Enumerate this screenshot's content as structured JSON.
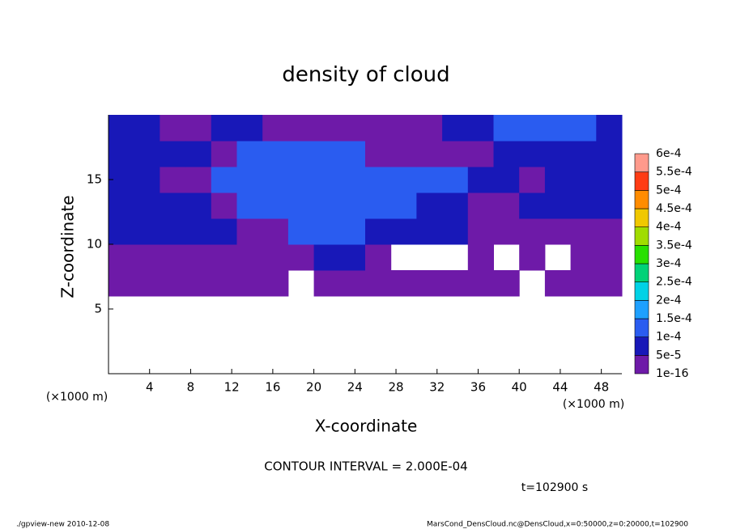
{
  "chart_data": {
    "type": "contour",
    "title": "density of cloud",
    "x_label": "X-coordinate",
    "y_label": "Z-coordinate",
    "x_unit": "(×1000 m)",
    "y_unit": "(×1000 m)",
    "contour_note": "CONTOUR INTERVAL = 2.000E-04",
    "time_label": "t=102900 s",
    "footer_left": "./gpview-new   2010-12-08",
    "footer_right": "MarsCond_DensCloud.nc@DensCloud,x=0:50000,z=0:20000,t=102900",
    "xlim": [
      0,
      50
    ],
    "ylim": [
      0,
      20
    ],
    "xticks": [
      4,
      8,
      12,
      16,
      20,
      24,
      28,
      32,
      36,
      40,
      44,
      48
    ],
    "yticks": [
      5,
      10,
      15
    ],
    "x_edges": [
      0,
      2.5,
      5,
      7.5,
      10,
      12.5,
      15,
      17.5,
      20,
      22.5,
      25,
      27.5,
      30,
      32.5,
      35,
      37.5,
      40,
      42.5,
      45,
      47.5,
      50
    ],
    "z_edges": [
      0,
      2,
      4,
      6,
      8,
      10,
      12,
      14,
      16,
      18,
      20
    ],
    "values": [
      [
        null,
        null,
        null,
        null,
        null,
        null,
        null,
        null,
        null,
        null,
        null,
        null,
        null,
        null,
        null,
        null,
        null,
        null,
        null,
        null
      ],
      [
        null,
        null,
        null,
        null,
        null,
        null,
        null,
        null,
        null,
        null,
        null,
        null,
        null,
        null,
        null,
        null,
        null,
        null,
        null,
        null
      ],
      [
        null,
        null,
        null,
        null,
        null,
        null,
        null,
        null,
        null,
        null,
        null,
        null,
        null,
        null,
        null,
        null,
        null,
        null,
        null,
        null
      ],
      [
        3e-05,
        3e-05,
        3e-05,
        3e-05,
        3e-05,
        3e-05,
        3e-05,
        null,
        3e-05,
        3e-05,
        3e-05,
        3e-05,
        3e-05,
        3e-05,
        3e-05,
        3e-05,
        null,
        3e-05,
        3e-05,
        3e-05
      ],
      [
        3e-05,
        3e-05,
        3e-05,
        3e-05,
        3e-05,
        3e-05,
        3e-05,
        3e-05,
        7e-05,
        7e-05,
        3e-05,
        null,
        null,
        null,
        3e-05,
        null,
        3e-05,
        null,
        3e-05,
        3e-05
      ],
      [
        7e-05,
        7e-05,
        7e-05,
        7e-05,
        7e-05,
        3e-05,
        3e-05,
        0.00012,
        0.00012,
        0.00012,
        7e-05,
        7e-05,
        7e-05,
        7e-05,
        3e-05,
        3e-05,
        3e-05,
        3e-05,
        3e-05,
        3e-05
      ],
      [
        7e-05,
        7e-05,
        7e-05,
        7e-05,
        3e-05,
        0.00012,
        0.00012,
        0.00012,
        0.00012,
        0.00012,
        0.00012,
        0.00012,
        7e-05,
        7e-05,
        3e-05,
        3e-05,
        7e-05,
        7e-05,
        7e-05,
        7e-05
      ],
      [
        7e-05,
        7e-05,
        3e-05,
        3e-05,
        0.00012,
        0.00012,
        0.00012,
        0.00012,
        0.00012,
        0.00012,
        0.00012,
        0.00012,
        0.00012,
        0.00012,
        7e-05,
        7e-05,
        3e-05,
        7e-05,
        7e-05,
        7e-05
      ],
      [
        7e-05,
        7e-05,
        7e-05,
        7e-05,
        3e-05,
        0.00012,
        0.00012,
        0.00012,
        0.00012,
        0.00012,
        3e-05,
        3e-05,
        3e-05,
        3e-05,
        3e-05,
        7e-05,
        7e-05,
        7e-05,
        7e-05,
        7e-05
      ],
      [
        7e-05,
        7e-05,
        3e-05,
        3e-05,
        7e-05,
        7e-05,
        3e-05,
        3e-05,
        3e-05,
        3e-05,
        3e-05,
        3e-05,
        3e-05,
        7e-05,
        7e-05,
        0.00012,
        0.00012,
        0.00012,
        0.00012,
        7e-05
      ]
    ],
    "levels": [
      {
        "value": 1e-16,
        "label": "1e-16"
      },
      {
        "value": 5e-05,
        "label": "5e-5"
      },
      {
        "value": 0.0001,
        "label": "1e-4"
      },
      {
        "value": 0.00015,
        "label": "1.5e-4"
      },
      {
        "value": 0.0002,
        "label": "2e-4"
      },
      {
        "value": 0.00025,
        "label": "2.5e-4"
      },
      {
        "value": 0.0003,
        "label": "3e-4"
      },
      {
        "value": 0.00035,
        "label": "3.5e-4"
      },
      {
        "value": 0.0004,
        "label": "4e-4"
      },
      {
        "value": 0.00045,
        "label": "4.5e-4"
      },
      {
        "value": 0.0005,
        "label": "5e-4"
      },
      {
        "value": 0.00055,
        "label": "5.5e-4"
      },
      {
        "value": 0.0006,
        "label": "6e-4"
      }
    ],
    "colors": [
      "#6e1aa8",
      "#1818b8",
      "#2a5cf0",
      "#1ea0ff",
      "#00d2e6",
      "#00d278",
      "#28e000",
      "#a0dc00",
      "#f0c800",
      "#ff8c00",
      "#ff3c14",
      "#ff9a8c"
    ]
  }
}
